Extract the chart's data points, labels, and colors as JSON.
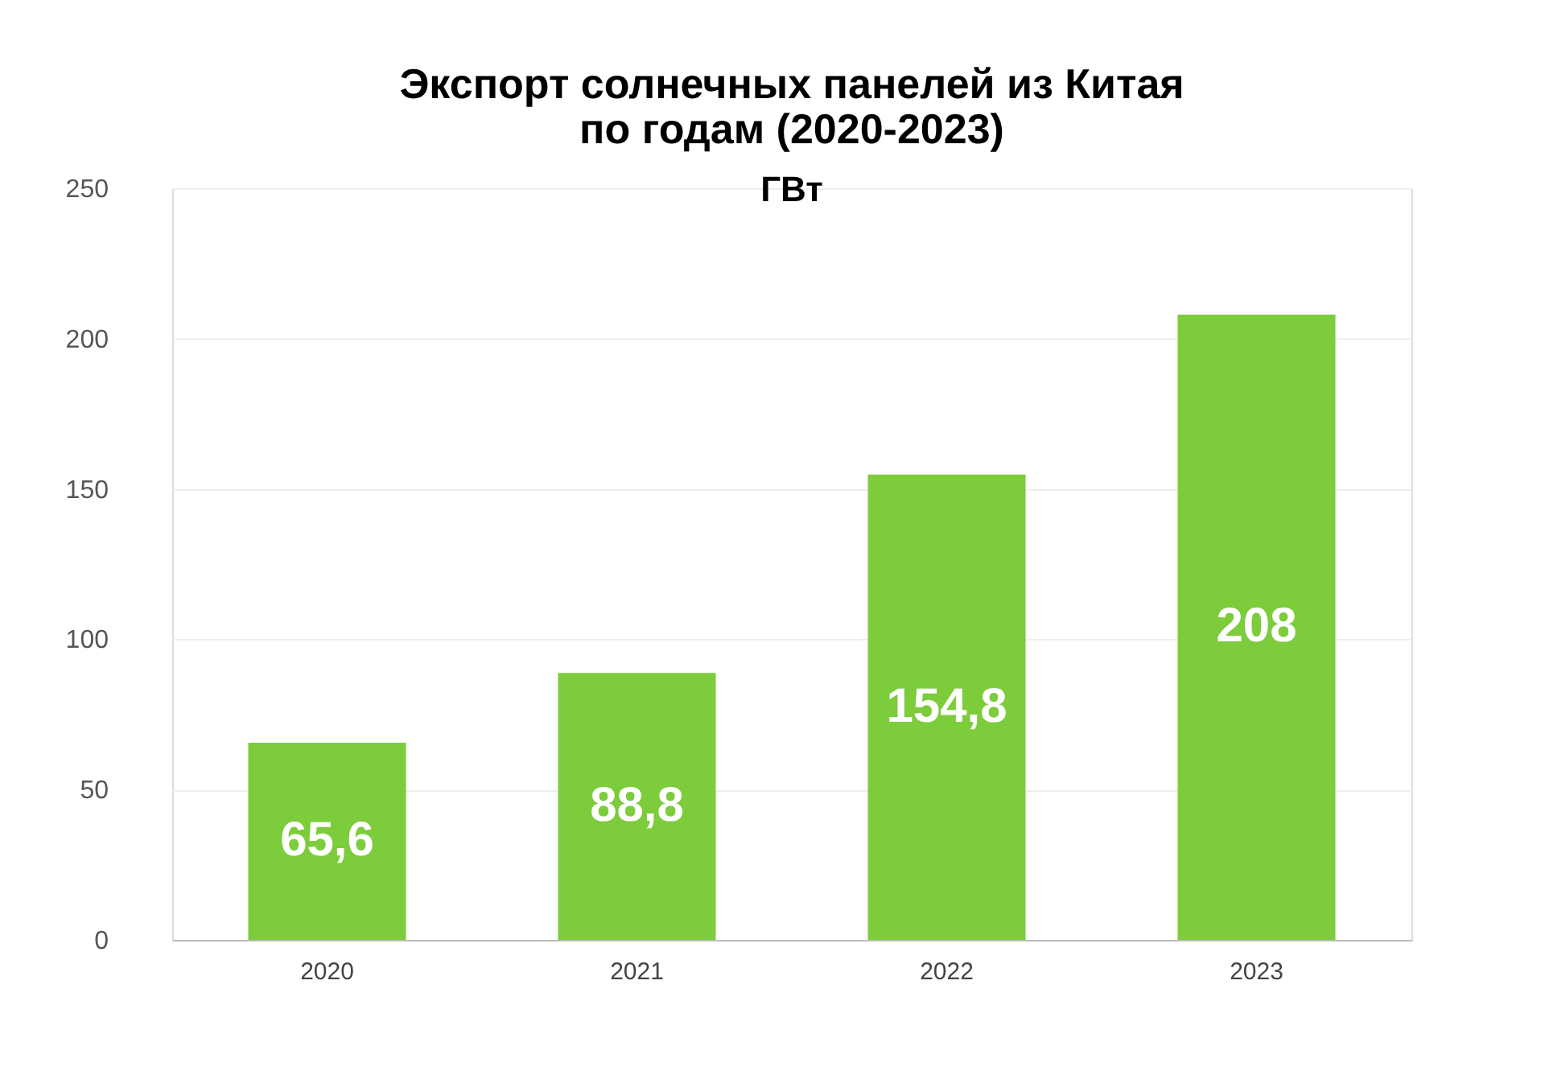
{
  "chart_data": {
    "type": "bar",
    "title": "Экспорт солнечных панелей из Китая\nпо годам (2020-2023)",
    "subtitle": "ГВт",
    "categories": [
      "2020",
      "2021",
      "2022",
      "2023"
    ],
    "values": [
      65.6,
      88.8,
      154.8,
      208
    ],
    "value_labels": [
      "65,6",
      "88,8",
      "154,8",
      "208"
    ],
    "color": "#7ccc3c",
    "ylim": [
      0,
      250
    ],
    "yticks": [
      0,
      50,
      100,
      150,
      200,
      250
    ],
    "grid": "y"
  }
}
